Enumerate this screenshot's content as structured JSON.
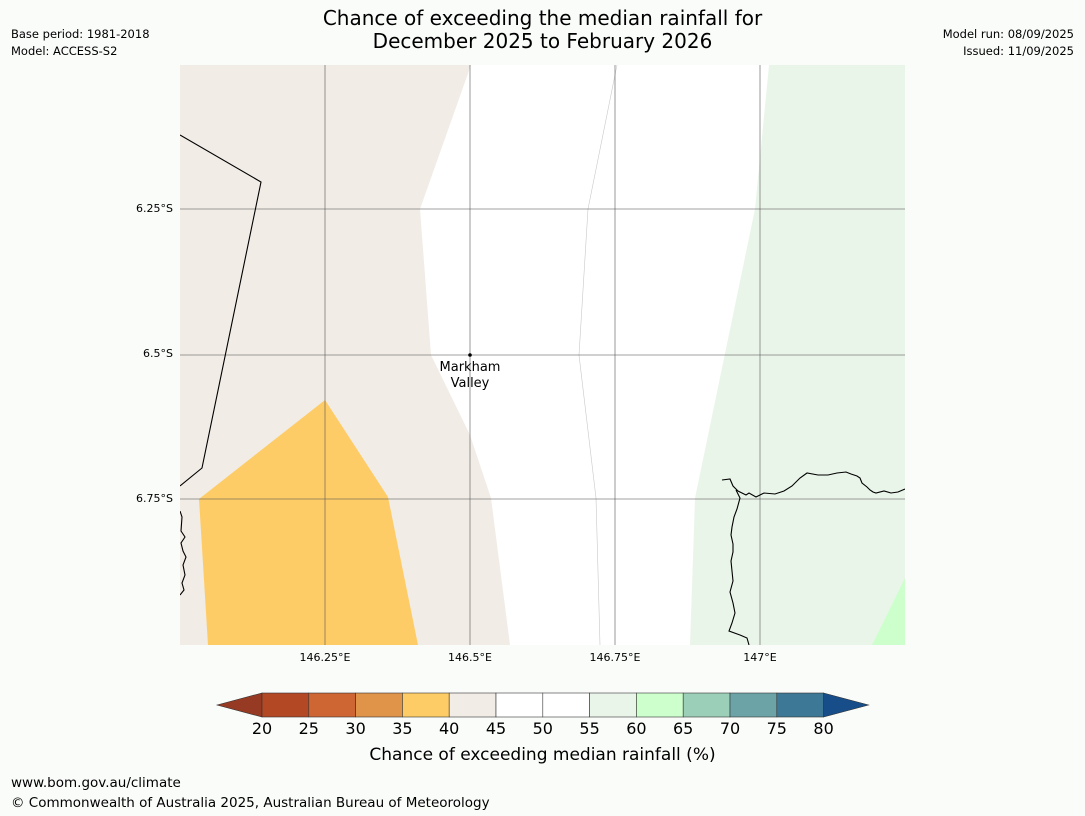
{
  "title": {
    "line1": "Chance of exceeding the median rainfall for",
    "line2": "December 2025 to February 2026"
  },
  "meta_left": {
    "base_period": "Base period: 1981-2018",
    "model": "Model: ACCESS-S2"
  },
  "meta_right": {
    "model_run": "Model run: 08/09/2025",
    "issued": "Issued: 11/09/2025"
  },
  "map": {
    "lat_labels": [
      "6.25°S",
      "6.5°S",
      "6.75°S"
    ],
    "lon_labels": [
      "146.25°E",
      "146.5°E",
      "146.75°E",
      "147°E"
    ],
    "place": {
      "line1": "Markham",
      "line2": "Valley"
    },
    "zone_colors": {
      "below_40_45": "#f1ece6",
      "below_35_40": "#fecc66",
      "near_45_55": "#ffffff",
      "above_55_60": "#eaf5ea",
      "above_60_65": "#ccffcc"
    },
    "land_line_color": "#000000"
  },
  "colorbar": {
    "ticks": [
      "20",
      "25",
      "30",
      "35",
      "40",
      "45",
      "50",
      "55",
      "60",
      "65",
      "70",
      "75",
      "80"
    ],
    "low_extend_color": "#973a23",
    "high_extend_color": "#174e8a",
    "colors": [
      "#b34825",
      "#cd6633",
      "#e0944a",
      "#fecc66",
      "#f1ece6",
      "#ffffff",
      "#ffffff",
      "#eaf5ea",
      "#ccffcc",
      "#9ccfb8",
      "#6ba3a6",
      "#3e7897"
    ],
    "label": "Chance of exceeding median rainfall (%)"
  },
  "footer": {
    "url": "www.bom.gov.au/climate",
    "copyright": "© Commonwealth of Australia 2025, Australian Bureau of Meteorology"
  }
}
